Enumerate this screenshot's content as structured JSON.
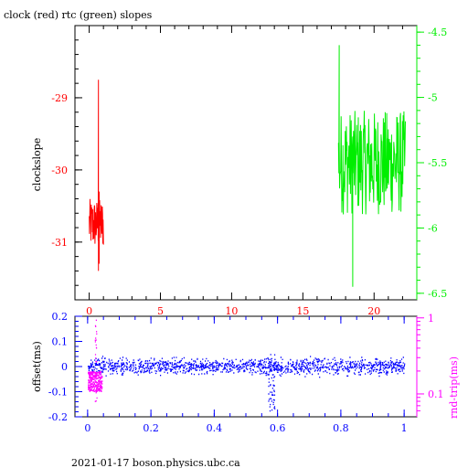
{
  "chart_data": [
    {
      "type": "line",
      "title": "clock (red) rtc (green) slopes",
      "ylabel": "clockslope",
      "xlim": [
        -1,
        23
      ],
      "x_ticks": [
        0,
        5,
        10,
        15,
        20
      ],
      "x_tick_labels": [
        "0",
        "5",
        "10",
        "15",
        "20"
      ],
      "ylim_left": [
        -31.8,
        -28
      ],
      "y_left_ticks": [
        -29,
        -30,
        -31
      ],
      "y_left_tick_labels": [
        "-29",
        "-30",
        "-31"
      ],
      "ylim_right": [
        -6.55,
        -4.45
      ],
      "y_right_ticks": [
        -4.5,
        -5,
        -5.5,
        -6,
        -6.5
      ],
      "y_right_tick_labels": [
        "-4.5",
        "-5",
        "-5.5",
        "-6",
        "-6.5"
      ],
      "series": [
        {
          "color": "#ff0000",
          "axis": "left",
          "x_range": [
            0,
            1
          ],
          "y_band": [
            -31.1,
            -30.4
          ],
          "spikes": [
            {
              "x": 0.65,
              "y_min": -31.4,
              "y_max": -28.75
            },
            {
              "x": 0.7,
              "y_min": -31.3,
              "y_max": -30.3
            }
          ]
        },
        {
          "color": "#00ee00",
          "axis": "right",
          "x_range": [
            17.5,
            22.2
          ],
          "y_band": [
            -5.9,
            -5.1
          ],
          "spikes": [
            {
              "x": 17.55,
              "y_min": -5.5,
              "y_max": -4.6
            },
            {
              "x": 18.5,
              "y_min": -6.45,
              "y_max": -5.3
            }
          ]
        }
      ]
    },
    {
      "type": "scatter",
      "xlabel": "",
      "ylabel_left": "offset(ms)",
      "ylabel_right": "rnd-trip(ms)",
      "xlim": [
        -0.04,
        1.04
      ],
      "x_ticks": [
        0,
        0.2,
        0.4,
        0.6,
        0.8,
        1
      ],
      "x_tick_labels": [
        "0",
        "0.2",
        "0.4",
        "0.6",
        "0.8",
        "1"
      ],
      "ylim_left": [
        -0.2,
        0.2
      ],
      "y_left_ticks": [
        0.2,
        0.1,
        0,
        -0.1,
        -0.2
      ],
      "y_left_tick_labels": [
        "0.2",
        "0.1",
        "0",
        "-0.1",
        "-0.2"
      ],
      "y_right_scale": "log",
      "ylim_right": [
        0.05,
        1.05
      ],
      "y_right_ticks": [
        1,
        0.1
      ],
      "y_right_tick_labels": [
        "1",
        "0.1"
      ],
      "series": [
        {
          "color": "#0000ff",
          "axis": "left",
          "x_range": [
            0,
            1
          ],
          "y_center": 0,
          "y_spread": 0.03,
          "excursion": {
            "x": 0.58,
            "y_min": -0.18,
            "y_max": 0.05
          }
        },
        {
          "color": "#ff00ff",
          "axis": "left",
          "x_range": [
            0,
            0.045
          ],
          "y_band": [
            -0.1,
            -0.02
          ],
          "spike": {
            "x": 0.025,
            "y_min": -0.15,
            "y_max": 0.19
          }
        }
      ]
    }
  ],
  "footer": {
    "text": "2021-01-17 boson.physics.ubc.ca"
  }
}
